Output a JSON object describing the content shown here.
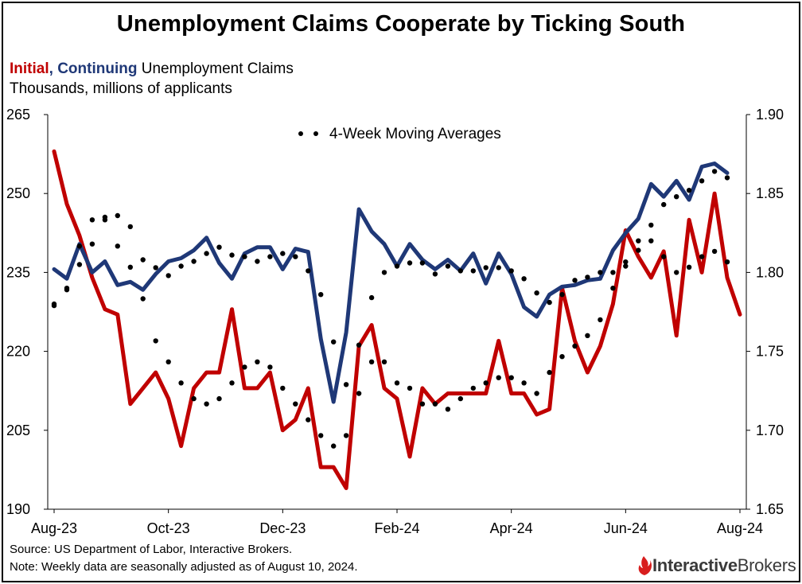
{
  "title": "Unemployment Claims Cooperate by Ticking South",
  "subtitle": {
    "initial": "Initial",
    "sep": ",",
    "continuing": "Continuing",
    "rest": "Unemployment Claims",
    "line2": "Thousands, millions of applicants"
  },
  "source": "Source: US Department of Labor, Interactive Brokers.",
  "note": "Note: Weekly data are seasonally adjusted as of August 10, 2024.",
  "logo": {
    "bold": "Interactive",
    "regular": "Brokers",
    "icon": "flame-icon"
  },
  "colors": {
    "initial": "#c00000",
    "continuing": "#1f3877",
    "moving_avg": "#000000"
  },
  "chart_data": {
    "type": "line",
    "title": "Unemployment Claims Cooperate by Ticking South",
    "legend": {
      "label": "4-Week Moving Averages",
      "placement": "top-center"
    },
    "x_tick_labels": [
      "Aug-23",
      "Oct-23",
      "Dec-23",
      "Feb-24",
      "Apr-24",
      "Jun-24",
      "Aug-24"
    ],
    "x_tick_index": [
      0,
      9,
      18,
      27,
      36,
      45,
      54
    ],
    "y_left": {
      "range": [
        190,
        265
      ],
      "ticks": [
        "190",
        "205",
        "220",
        "235",
        "250",
        "265"
      ]
    },
    "y_right": {
      "range": [
        1.65,
        1.9
      ],
      "ticks": [
        "1.65",
        "1.70",
        "1.75",
        "1.80",
        "1.85",
        "1.90"
      ]
    },
    "grid": false,
    "series": [
      {
        "name": "Initial",
        "axis": "left",
        "style": "solid",
        "values": [
          258,
          248,
          242,
          234,
          228,
          227,
          210,
          213,
          216,
          211,
          202,
          213,
          216,
          216,
          228,
          213,
          213,
          216,
          205,
          207,
          213,
          198,
          198,
          194,
          221,
          225,
          213,
          211,
          200,
          213,
          210,
          212,
          212,
          212,
          212,
          222,
          212,
          212,
          208,
          209,
          232,
          222,
          216,
          221,
          229,
          243,
          238,
          234,
          239,
          223,
          245,
          235,
          250,
          234,
          227
        ]
      },
      {
        "name": "Continuing",
        "axis": "right",
        "style": "solid",
        "values": [
          1.802,
          1.796,
          1.818,
          1.8,
          1.807,
          1.792,
          1.794,
          1.789,
          1.799,
          1.807,
          1.809,
          1.814,
          1.822,
          1.806,
          1.796,
          1.812,
          1.816,
          1.816,
          1.802,
          1.815,
          1.813,
          1.758,
          1.718,
          1.762,
          1.84,
          1.826,
          1.818,
          1.804,
          1.818,
          1.808,
          1.802,
          1.808,
          1.801,
          1.812,
          1.793,
          1.812,
          1.799,
          1.778,
          1.772,
          1.786,
          1.791,
          1.792,
          1.795,
          1.796,
          1.814,
          1.825,
          1.834,
          1.856,
          1.848,
          1.858,
          1.846,
          1.867,
          1.869,
          1.863
        ]
      },
      {
        "name": "Initial 4-week average",
        "axis": "left",
        "style": "dotted",
        "values": [
          229,
          232,
          240,
          245,
          245,
          240,
          236,
          230,
          222,
          218,
          214,
          211,
          210,
          211,
          214,
          217,
          218,
          217,
          213,
          210,
          207,
          204,
          202,
          204,
          212,
          218,
          218,
          214,
          213,
          210,
          210,
          209,
          211,
          213,
          214,
          215,
          215,
          214,
          212,
          216,
          219,
          221,
          223,
          226,
          232,
          237,
          241,
          241,
          238,
          235,
          236,
          238,
          239,
          237
        ]
      },
      {
        "name": "Continuing 4-week average",
        "axis": "right",
        "style": "dotted",
        "values": [
          1.779,
          1.789,
          1.805,
          1.818,
          1.835,
          1.836,
          1.829,
          1.808,
          1.803,
          1.798,
          1.804,
          1.807,
          1.812,
          1.816,
          1.811,
          1.81,
          1.807,
          1.81,
          1.812,
          1.81,
          1.801,
          1.786,
          1.756,
          1.729,
          1.754,
          1.784,
          1.8,
          1.804,
          1.806,
          1.806,
          1.799,
          1.804,
          1.801,
          1.801,
          1.803,
          1.803,
          1.801,
          1.796,
          1.787,
          1.781,
          1.786,
          1.795,
          1.797,
          1.8,
          1.8,
          1.804,
          1.814,
          1.83,
          1.843,
          1.848,
          1.852,
          1.858,
          1.864,
          1.86
        ]
      }
    ]
  }
}
